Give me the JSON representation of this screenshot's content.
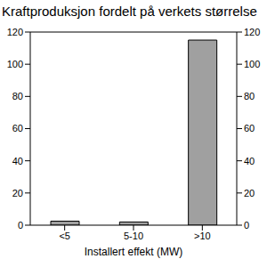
{
  "chart_data": {
    "type": "bar",
    "title": "Kraftproduksjon fordelt på verkets størrelse",
    "x_label": "Installert effekt (MW)",
    "categories": [
      "<5",
      "5-10",
      ">10"
    ],
    "values": [
      2.5,
      2,
      115
    ],
    "color": "#a0a0a0",
    "ylim": [
      0,
      120
    ],
    "yticks": [
      0,
      20,
      40,
      60,
      80,
      100,
      120
    ],
    "y2lim": [
      0,
      120
    ],
    "y2ticks": [
      0,
      20,
      40,
      60,
      80,
      100,
      120
    ],
    "grid": false
  }
}
